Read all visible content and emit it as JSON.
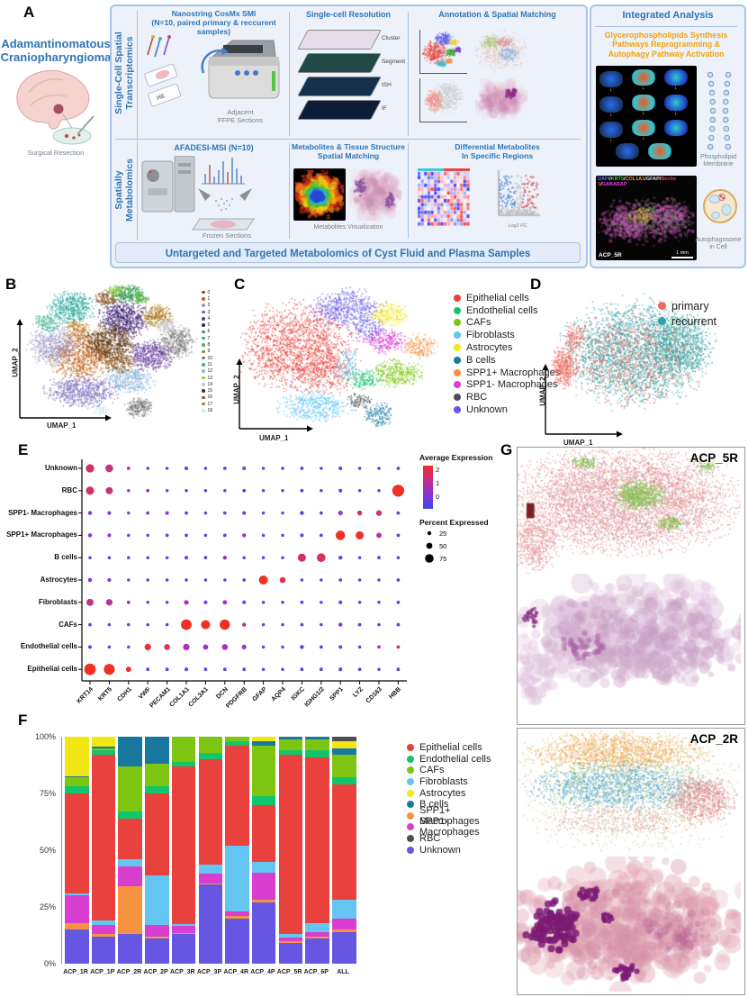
{
  "panels": {
    "a": "A",
    "b": "B",
    "c": "C",
    "d": "D",
    "e": "E",
    "f": "F",
    "g": "G"
  },
  "panel_a": {
    "disease_title": "Adamantinomatous\nCraniopharyngioma",
    "surgical_caption": "Surgical Resection",
    "transcriptomics_strip": "Single-Cell Spatial\nTranscriptomics",
    "metabolomics_strip": "Spatially\nMetabolomics",
    "cosmx_title": "Nanostring CosMx SMI\n(N=10, paired primary & reccurent samples)",
    "he_label": "HE",
    "adjacent_caption": "Adjacent\nFFPE Sections",
    "resolution_title": "Single-cell Resolution",
    "layer_labels": [
      "Cluster",
      "Segment",
      "ISH",
      "IF"
    ],
    "annotation_title": "Annotation & Spatial Matching",
    "afadesi_title": "AFADESI-MSI (N=10)",
    "frozen_caption": "Frozen Sections",
    "metabolites_title": "Metabolites & Tissue Structure\nSpatial Matching",
    "metabolites_caption": "Metabolites Visualization",
    "differential_title": "Differential Metabolites\nIn Specific Regions",
    "volcano_xlabel": "Log2 FC",
    "bottom_band": "Untargeted and Targeted Metabolomics of Cyst Fluid and Plasma Samples",
    "integrated_title": "Integrated Analysis",
    "pathway_title": "Glycerophospholipids Synthesis\nPathways Reprogramming &\nAutophagy Pathway Activation",
    "phospholipid_caption": "Phospholipid\nMembrane",
    "autophagosome_caption": "Autophagosome\nin Cell",
    "fluor_markers": [
      {
        "text": "DAPI",
        "color": "#5b79f7"
      },
      {
        "text": "/",
        "color": "#e8e8e8"
      },
      {
        "text": "KRT5",
        "color": "#3ed43e"
      },
      {
        "text": "/",
        "color": "#e8e8e8"
      },
      {
        "text": "COL1A1",
        "color": "#f59b2d"
      },
      {
        "text": "/",
        "color": "#e8e8e8"
      },
      {
        "text": "GFAP",
        "color": "#dcdcdc"
      },
      {
        "text": "/",
        "color": "#e8e8e8"
      },
      {
        "text": "Beclin 1",
        "color": "#f54040"
      },
      {
        "text": "/",
        "color": "#e8e8e8"
      },
      {
        "text": "GABARAP",
        "color": "#ee3cee"
      }
    ],
    "fluor_sample": "ACP_5R",
    "fluor_scale": "1 mm"
  },
  "panel_g": {
    "panels": [
      {
        "label": "ACP_5R"
      },
      {
        "label": "ACP_2R"
      }
    ]
  },
  "chart_data": [
    {
      "id": "umap_b",
      "type": "scatter",
      "xlabel": "UMAP_1",
      "ylabel": "UMAP_2",
      "clusters": [
        {
          "label": "0",
          "color": "#8a4e20",
          "x": 0.47,
          "y": 0.1,
          "rx": 0.06,
          "ry": 0.05,
          "n": 150
        },
        {
          "label": "1",
          "color": "#c1641c",
          "x": 0.33,
          "y": 0.52,
          "rx": 0.17,
          "ry": 0.15,
          "n": 900
        },
        {
          "label": "2",
          "color": "#9f9ad0",
          "x": 0.16,
          "y": 0.45,
          "rx": 0.13,
          "ry": 0.12,
          "n": 500
        },
        {
          "label": "3",
          "color": "#7668b8",
          "x": 0.33,
          "y": 0.78,
          "rx": 0.18,
          "ry": 0.1,
          "n": 600
        },
        {
          "label": "4",
          "color": "#6a3fa0",
          "x": 0.72,
          "y": 0.52,
          "rx": 0.12,
          "ry": 0.1,
          "n": 500
        },
        {
          "label": "5",
          "color": "#3f2277",
          "x": 0.57,
          "y": 0.25,
          "rx": 0.12,
          "ry": 0.12,
          "n": 650
        },
        {
          "label": "6",
          "color": "#2e9e4e",
          "x": 0.6,
          "y": 0.07,
          "rx": 0.08,
          "ry": 0.06,
          "n": 260
        },
        {
          "label": "7",
          "color": "#27a59a",
          "x": 0.27,
          "y": 0.17,
          "rx": 0.12,
          "ry": 0.1,
          "n": 480
        },
        {
          "label": "8",
          "color": "#57b03c",
          "x": 0.67,
          "y": 0.1,
          "rx": 0.04,
          "ry": 0.04,
          "n": 90
        },
        {
          "label": "9",
          "color": "#a97818",
          "x": 0.76,
          "y": 0.23,
          "rx": 0.08,
          "ry": 0.07,
          "n": 260
        },
        {
          "label": "10",
          "color": "#7d7d7d",
          "x": 0.88,
          "y": 0.42,
          "rx": 0.09,
          "ry": 0.1,
          "n": 380
        },
        {
          "label": "11",
          "color": "#45b58e",
          "x": 0.13,
          "y": 0.28,
          "rx": 0.07,
          "ry": 0.06,
          "n": 160
        },
        {
          "label": "12",
          "color": "#8fb8dc",
          "x": 0.6,
          "y": 0.7,
          "rx": 0.12,
          "ry": 0.09,
          "n": 420
        },
        {
          "label": "13",
          "color": "#8ccf3e",
          "x": 0.52,
          "y": 0.04,
          "rx": 0.05,
          "ry": 0.03,
          "n": 70
        },
        {
          "label": "14",
          "color": "#c9c9c9",
          "x": 0.82,
          "y": 0.3,
          "rx": 0.05,
          "ry": 0.05,
          "n": 130
        },
        {
          "label": "15",
          "color": "#57330f",
          "x": 0.49,
          "y": 0.42,
          "rx": 0.13,
          "ry": 0.12,
          "n": 620
        },
        {
          "label": "16",
          "color": "#8a5a24",
          "x": 0.55,
          "y": 0.57,
          "rx": 0.07,
          "ry": 0.07,
          "n": 220
        },
        {
          "label": "17",
          "color": "#bf7a2a",
          "x": 0.3,
          "y": 0.33,
          "rx": 0.06,
          "ry": 0.06,
          "n": 160
        },
        {
          "label": "18",
          "color": "#cfeef2",
          "x": 0.44,
          "y": 0.92,
          "rx": 0.04,
          "ry": 0.03,
          "n": 60
        }
      ],
      "extra_blobs": [
        {
          "color": "#6e6e6e",
          "x": 0.66,
          "y": 0.9,
          "rx": 0.07,
          "ry": 0.06,
          "n": 200
        }
      ]
    },
    {
      "id": "umap_c",
      "type": "scatter",
      "xlabel": "UMAP_1",
      "ylabel": "UMAP_2",
      "legend": [
        {
          "label": "Epithelial cells",
          "color": "#e8413e"
        },
        {
          "label": "Endothelial cells",
          "color": "#10c56c"
        },
        {
          "label": "CAFs",
          "color": "#7dc510"
        },
        {
          "label": "Fibroblasts",
          "color": "#63c5f0"
        },
        {
          "label": "Astrocytes",
          "color": "#f2e614"
        },
        {
          "label": "B cells",
          "color": "#1878a0"
        },
        {
          "label": "SPP1+ Macrophages",
          "color": "#f79240"
        },
        {
          "label": "SPP1- Macrophages",
          "color": "#d83fd0"
        },
        {
          "label": "RBC",
          "color": "#4f4f4f"
        },
        {
          "label": "Unknown",
          "color": "#6657e3"
        }
      ],
      "points_spec": [
        {
          "color": "#e8413e",
          "x": 0.28,
          "y": 0.42,
          "rx": 0.24,
          "ry": 0.26,
          "n": 1600
        },
        {
          "color": "#e8413e",
          "x": 0.42,
          "y": 0.6,
          "rx": 0.12,
          "ry": 0.12,
          "n": 300
        },
        {
          "color": "#6657e3",
          "x": 0.52,
          "y": 0.16,
          "rx": 0.15,
          "ry": 0.11,
          "n": 500
        },
        {
          "color": "#6657e3",
          "x": 0.62,
          "y": 0.3,
          "rx": 0.08,
          "ry": 0.08,
          "n": 150
        },
        {
          "color": "#63c5f0",
          "x": 0.36,
          "y": 0.83,
          "rx": 0.15,
          "ry": 0.09,
          "n": 450
        },
        {
          "color": "#63c5f0",
          "x": 0.52,
          "y": 0.55,
          "rx": 0.06,
          "ry": 0.1,
          "n": 120
        },
        {
          "color": "#f2e614",
          "x": 0.73,
          "y": 0.2,
          "rx": 0.08,
          "ry": 0.07,
          "n": 220
        },
        {
          "color": "#d83fd0",
          "x": 0.7,
          "y": 0.38,
          "rx": 0.09,
          "ry": 0.07,
          "n": 260
        },
        {
          "color": "#f79240",
          "x": 0.87,
          "y": 0.42,
          "rx": 0.07,
          "ry": 0.07,
          "n": 200
        },
        {
          "color": "#7dc510",
          "x": 0.76,
          "y": 0.6,
          "rx": 0.11,
          "ry": 0.08,
          "n": 350
        },
        {
          "color": "#10c56c",
          "x": 0.6,
          "y": 0.64,
          "rx": 0.07,
          "ry": 0.06,
          "n": 160
        },
        {
          "color": "#1878a0",
          "x": 0.67,
          "y": 0.88,
          "rx": 0.06,
          "ry": 0.07,
          "n": 160
        },
        {
          "color": "#4f4f4f",
          "x": 0.58,
          "y": 0.79,
          "rx": 0.05,
          "ry": 0.05,
          "n": 90
        }
      ]
    },
    {
      "id": "umap_d",
      "type": "scatter",
      "xlabel": "UMAP_1",
      "ylabel": "UMAP_2",
      "legend": [
        {
          "label": "primary",
          "color": "#ec6960"
        },
        {
          "label": "recurrent",
          "color": "#2fa3a5"
        }
      ],
      "points_spec": [
        {
          "color": "#2fa3a5",
          "x": 0.52,
          "y": 0.45,
          "rx": 0.33,
          "ry": 0.3,
          "n": 2600
        },
        {
          "color": "#ec6960",
          "x": 0.5,
          "y": 0.5,
          "rx": 0.3,
          "ry": 0.28,
          "n": 900
        },
        {
          "color": "#ec6960",
          "x": 0.14,
          "y": 0.55,
          "rx": 0.06,
          "ry": 0.12,
          "n": 400
        },
        {
          "color": "#ec6960",
          "x": 0.2,
          "y": 0.35,
          "rx": 0.05,
          "ry": 0.08,
          "n": 150
        },
        {
          "color": "#2fa3a5",
          "x": 0.75,
          "y": 0.4,
          "rx": 0.15,
          "ry": 0.18,
          "n": 600
        }
      ]
    },
    {
      "id": "dotplot_e",
      "type": "scatter",
      "rows": [
        "Unknown",
        "RBC",
        "SPP1- Macrophages",
        "SPP1+ Macrophages",
        "B cells",
        "Astrocytes",
        "Fibroblasts",
        "CAFs",
        "Endothelial cells",
        "Epithelial cells"
      ],
      "genes": [
        "KRT14",
        "KRT5",
        "CDH1",
        "VWF",
        "PECAM1",
        "COL1A1",
        "COL3A1",
        "DCN",
        "PDGFRB",
        "GFAP",
        "AQP4",
        "IGKC",
        "IGHG1/2",
        "SPP1",
        "LYZ",
        "CD163",
        "HBB"
      ],
      "percent_expressed": [
        [
          50,
          45,
          10,
          8,
          8,
          12,
          8,
          10,
          12,
          8,
          8,
          10,
          8,
          12,
          8,
          8,
          10
        ],
        [
          48,
          40,
          8,
          10,
          8,
          8,
          8,
          8,
          10,
          8,
          8,
          10,
          8,
          12,
          8,
          8,
          78
        ],
        [
          15,
          12,
          8,
          10,
          12,
          10,
          8,
          10,
          12,
          8,
          8,
          15,
          10,
          20,
          22,
          28,
          10
        ],
        [
          15,
          12,
          8,
          8,
          10,
          10,
          8,
          10,
          14,
          8,
          8,
          12,
          10,
          58,
          48,
          25,
          10
        ],
        [
          8,
          8,
          8,
          8,
          8,
          12,
          10,
          14,
          8,
          8,
          8,
          48,
          52,
          15,
          8,
          10,
          8
        ],
        [
          15,
          12,
          8,
          8,
          8,
          8,
          8,
          8,
          10,
          55,
          30,
          8,
          8,
          10,
          8,
          8,
          10
        ],
        [
          40,
          35,
          10,
          8,
          8,
          20,
          12,
          18,
          12,
          8,
          8,
          10,
          8,
          12,
          8,
          8,
          10
        ],
        [
          10,
          8,
          8,
          8,
          8,
          68,
          55,
          65,
          15,
          8,
          8,
          10,
          8,
          15,
          10,
          8,
          10
        ],
        [
          12,
          8,
          8,
          35,
          30,
          35,
          25,
          30,
          20,
          8,
          8,
          15,
          10,
          12,
          8,
          10,
          10
        ],
        [
          75,
          70,
          25,
          10,
          10,
          12,
          10,
          10,
          10,
          8,
          8,
          10,
          10,
          12,
          10,
          8,
          10
        ]
      ],
      "average_expression": [
        [
          1.6,
          1.5,
          1.2,
          0.5,
          0.4,
          0.4,
          0.3,
          0.4,
          0.5,
          0.3,
          0.3,
          0.2,
          0.3,
          0.3,
          0.4,
          0.3,
          0.5
        ],
        [
          1.6,
          1.5,
          0.8,
          0.8,
          0.6,
          0.3,
          0.3,
          0.4,
          0.4,
          0.4,
          0.4,
          0.2,
          0.4,
          0.3,
          0.4,
          0.4,
          2.5
        ],
        [
          0.7,
          0.6,
          0.5,
          0.6,
          0.7,
          0.4,
          0.4,
          0.5,
          0.6,
          0.4,
          0.4,
          0.4,
          0.5,
          0.9,
          1.6,
          1.6,
          0.5
        ],
        [
          0.7,
          0.6,
          0.5,
          0.5,
          0.6,
          0.4,
          0.4,
          0.5,
          0.8,
          0.4,
          0.4,
          0.4,
          0.5,
          2.1,
          2.0,
          1.2,
          0.5
        ],
        [
          0.3,
          0.3,
          0.3,
          0.3,
          0.3,
          0.6,
          0.5,
          0.8,
          0.3,
          0.3,
          0.3,
          1.6,
          1.7,
          0.5,
          0.4,
          0.5,
          0.3
        ],
        [
          0.8,
          0.7,
          0.5,
          0.4,
          0.4,
          0.3,
          0.3,
          0.3,
          0.5,
          2.2,
          1.8,
          0.3,
          0.3,
          0.5,
          0.3,
          0.3,
          0.5
        ],
        [
          1.4,
          1.3,
          0.8,
          0.5,
          0.4,
          1.0,
          0.7,
          1.0,
          0.6,
          0.4,
          0.4,
          0.4,
          0.3,
          0.5,
          0.4,
          0.4,
          0.5
        ],
        [
          0.4,
          0.3,
          0.4,
          0.4,
          0.4,
          2.3,
          2.2,
          2.3,
          1.4,
          0.4,
          0.4,
          0.4,
          0.4,
          0.7,
          0.5,
          0.4,
          0.5
        ],
        [
          0.5,
          0.4,
          0.4,
          1.9,
          1.8,
          1.1,
          0.9,
          1.0,
          0.9,
          0.4,
          0.4,
          0.5,
          0.5,
          0.5,
          0.4,
          0.8,
          1.5
        ],
        [
          2.3,
          2.3,
          1.9,
          0.5,
          0.4,
          0.4,
          0.4,
          0.4,
          0.4,
          0.3,
          0.3,
          0.3,
          0.4,
          0.4,
          0.4,
          0.3,
          0.4
        ]
      ],
      "color_legend": {
        "title": "Average Expression",
        "ticks": [
          "2",
          "1",
          "0"
        ]
      },
      "size_legend": {
        "title": "Percent Expressed",
        "ticks": [
          "25",
          "50",
          "75"
        ]
      }
    },
    {
      "id": "bars_f",
      "type": "bar",
      "stacked": true,
      "categories": [
        "ACP_1R",
        "ACP_1P",
        "ACP_2R",
        "ACP_2P",
        "ACP_3R",
        "ACP_3P",
        "ACP_4R",
        "ACP_4P",
        "ACP_5R",
        "ACP_6P",
        "ALL"
      ],
      "yticks_top_down": [
        "100%",
        "75%",
        "50%",
        "25%",
        "0%"
      ],
      "series": [
        {
          "name": "Unknown",
          "values": [
            15,
            12,
            13,
            11,
            13,
            35,
            20,
            27,
            9,
            11,
            14
          ]
        },
        {
          "name": "SPP1+ Macrophages",
          "values": [
            3,
            1,
            21,
            1,
            0.5,
            0.5,
            1,
            1,
            1,
            1,
            1
          ]
        },
        {
          "name": "SPP1- Macrophages",
          "values": [
            12,
            4,
            9,
            5,
            3,
            4,
            2,
            12,
            1.5,
            2,
            5
          ]
        },
        {
          "name": "Fibroblasts",
          "values": [
            1,
            2,
            3,
            22,
            1,
            4,
            29,
            5,
            1.5,
            4,
            8
          ]
        },
        {
          "name": "Epithelial cells",
          "values": [
            44,
            73,
            18,
            36,
            69.5,
            46.5,
            44,
            25,
            79,
            73,
            51
          ]
        },
        {
          "name": "Endothelial cells",
          "values": [
            3,
            2,
            3,
            3,
            2,
            3,
            2,
            4,
            2,
            3,
            3
          ]
        },
        {
          "name": "CAFs",
          "values": [
            4,
            1,
            20,
            10,
            11,
            7,
            2,
            22,
            5,
            5,
            10
          ]
        },
        {
          "name": "B cells",
          "values": [
            0.5,
            0.5,
            13,
            12,
            0,
            0,
            0,
            2,
            1,
            1,
            3
          ]
        },
        {
          "name": "Astrocytes",
          "values": [
            17.5,
            4.5,
            0,
            0,
            0,
            0,
            0,
            2,
            0,
            0,
            3
          ]
        },
        {
          "name": "RBC",
          "values": [
            0,
            0,
            0,
            0,
            0,
            0,
            0,
            0,
            0,
            0,
            2
          ]
        }
      ]
    }
  ]
}
